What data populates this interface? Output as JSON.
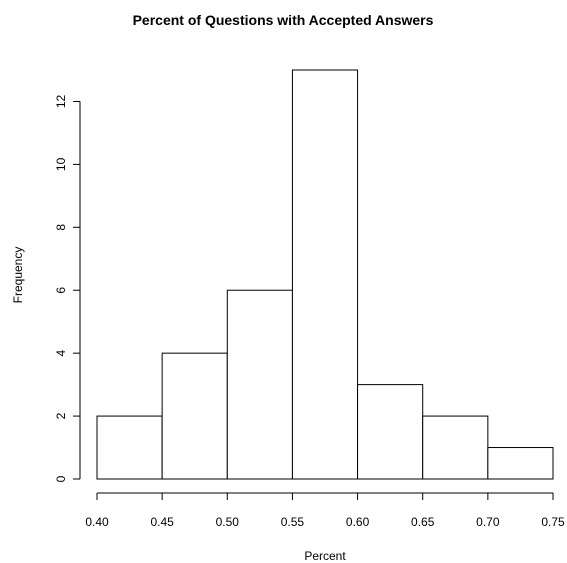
{
  "chart_data": {
    "type": "bar",
    "title": "Percent of Questions with Accepted Answers",
    "xlabel": "Percent",
    "ylabel": "Frequency",
    "bins": [
      {
        "from": 0.4,
        "to": 0.45,
        "count": 2
      },
      {
        "from": 0.45,
        "to": 0.5,
        "count": 4
      },
      {
        "from": 0.5,
        "to": 0.55,
        "count": 6
      },
      {
        "from": 0.55,
        "to": 0.6,
        "count": 13
      },
      {
        "from": 0.6,
        "to": 0.65,
        "count": 3
      },
      {
        "from": 0.65,
        "to": 0.7,
        "count": 2
      },
      {
        "from": 0.7,
        "to": 0.75,
        "count": 1
      }
    ],
    "xlim": [
      0.4,
      0.75
    ],
    "ylim": [
      0,
      13
    ],
    "x_ticks": [
      {
        "value": 0.4,
        "label": "0.40"
      },
      {
        "value": 0.45,
        "label": "0.45"
      },
      {
        "value": 0.5,
        "label": "0.50"
      },
      {
        "value": 0.55,
        "label": "0.55"
      },
      {
        "value": 0.6,
        "label": "0.60"
      },
      {
        "value": 0.65,
        "label": "0.65"
      },
      {
        "value": 0.7,
        "label": "0.70"
      },
      {
        "value": 0.75,
        "label": "0.75"
      }
    ],
    "y_ticks": [
      {
        "value": 0,
        "label": "0"
      },
      {
        "value": 2,
        "label": "2"
      },
      {
        "value": 4,
        "label": "4"
      },
      {
        "value": 6,
        "label": "6"
      },
      {
        "value": 8,
        "label": "8"
      },
      {
        "value": 10,
        "label": "10"
      },
      {
        "value": 12,
        "label": "12"
      }
    ],
    "grid": false,
    "legend": "none",
    "colors": {
      "bar_fill": "#ffffff",
      "bar_stroke": "#000000"
    }
  }
}
